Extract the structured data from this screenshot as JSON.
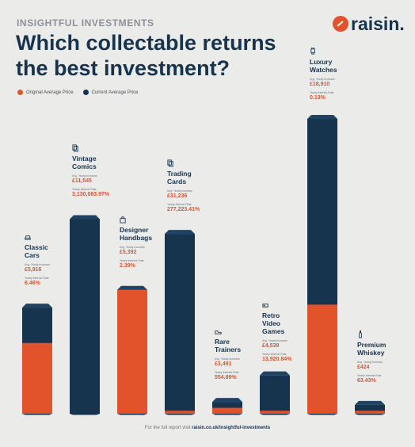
{
  "header": {
    "eyebrow": "INSIGHTFUL INVESTMENTS",
    "title": "Which collectable returns the best investment?",
    "brand": "raisin."
  },
  "footer": {
    "prefix": "For the full report visit",
    "link": "raisin.co.uk/insightful-investments"
  },
  "colors": {
    "original": "#e2522b",
    "current": "#17344f",
    "background": "#ebebea"
  },
  "chart_data": {
    "type": "bar",
    "stacked": false,
    "overlapping": true,
    "legend": "top-left",
    "grid": false,
    "categories": [
      "Classic Cars",
      "Vintage Comics",
      "Designer Handbags",
      "Trading Cards",
      "Rare Trainers",
      "Retro Video Games",
      "Luxury Watches",
      "Premium Whiskey"
    ],
    "series": [
      {
        "name": "Original Average Price",
        "color": "#e2522b",
        "relative_values": [
          0.24,
          0,
          0.44,
          0.01,
          0.02,
          0.01,
          0.37,
          0.01
        ]
      },
      {
        "name": "Current Average Price",
        "color": "#17344f",
        "relative_values": [
          0.36,
          0.66,
          0.42,
          0.61,
          0.04,
          0.13,
          1.0,
          0.03
        ]
      }
    ],
    "annotations": [
      {
        "category": "Classic Cars",
        "increase_label": "Avg. Yearly Increase",
        "increase": "£5,916",
        "rate_label": "Yearly Interest Rate",
        "rate": "6.46%",
        "icon": "car-icon"
      },
      {
        "category": "Vintage Comics",
        "increase_label": "Avg. Yearly Increase",
        "increase": "£11,545",
        "rate_label": "Yearly Interest Rate",
        "rate": "3,130,083.97%",
        "icon": "comic-icon"
      },
      {
        "category": "Designer Handbags",
        "increase_label": "Avg. Yearly Increase",
        "increase": "£5,392",
        "rate_label": "Yearly Interest Rate",
        "rate": "2.39%",
        "icon": "handbag-icon"
      },
      {
        "category": "Trading Cards",
        "increase_label": "Avg. Yearly Increase",
        "increase": "£31,236",
        "rate_label": "Yearly Interest Rate",
        "rate": "277,223.41%",
        "icon": "cards-icon"
      },
      {
        "category": "Rare Trainers",
        "increase_label": "Avg. Yearly Increase",
        "increase": "£3,491",
        "rate_label": "Yearly Interest Rate",
        "rate": "554.89%",
        "icon": "trainer-icon"
      },
      {
        "category": "Retro Video Games",
        "increase_label": "Avg. Yearly Increase",
        "increase": "£4,539",
        "rate_label": "Yearly Interest Rate",
        "rate": "13,920.84%",
        "icon": "gamepad-icon"
      },
      {
        "category": "Luxury Watches",
        "increase_label": "Avg. Yearly Increase",
        "increase": "£18,910",
        "rate_label": "Yearly Interest Rate",
        "rate": "0.13%",
        "icon": "watch-icon"
      },
      {
        "category": "Premium Whiskey",
        "increase_label": "Avg. Yearly Increase",
        "increase": "£424",
        "rate_label": "Yearly Interest Rate",
        "rate": "63.43%",
        "icon": "bottle-icon"
      }
    ]
  }
}
